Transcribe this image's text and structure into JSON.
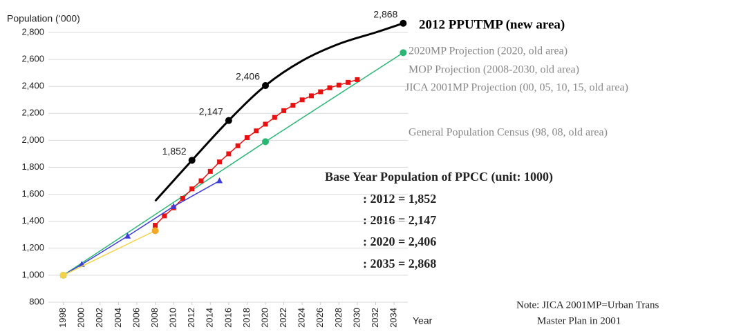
{
  "chart_data": {
    "type": "line",
    "y_label": "Population (‘000)",
    "x_label": "Year",
    "xlim": [
      1997.5,
      2035.5
    ],
    "xticks": [
      1998,
      2000,
      2002,
      2004,
      2006,
      2008,
      2010,
      2012,
      2014,
      2016,
      2018,
      2020,
      2022,
      2024,
      2026,
      2028,
      2030,
      2032,
      2034
    ],
    "ylim": [
      800,
      2800
    ],
    "yticks": [
      800,
      {
        "value": 1000,
        "label": "1,000"
      },
      {
        "value": 1200,
        "label": "1,200"
      },
      {
        "value": 1400,
        "label": "1,400"
      },
      {
        "value": 1600,
        "label": "1,600"
      },
      {
        "value": 1800,
        "label": "1,800"
      },
      {
        "value": 2000,
        "label": "2,000"
      },
      {
        "value": 2200,
        "label": "2,200"
      },
      {
        "value": 2400,
        "label": "2,400"
      },
      {
        "value": 2600,
        "label": "2,600"
      },
      {
        "value": 2800,
        "label": "2,800"
      }
    ],
    "grid": true,
    "series": [
      {
        "name": "2012 PPUTMP (new area)",
        "color": "#000000",
        "marker": "circle",
        "smooth": true,
        "x": [
          2008,
          2012,
          2016,
          2020,
          2024,
          2028,
          2032,
          2035
        ],
        "values": [
          1550,
          1852,
          2147,
          2406,
          2590,
          2715,
          2800,
          2868
        ],
        "value_labels": [
          null,
          "1,852",
          "2,147",
          "2,406",
          null,
          null,
          null,
          "2,868"
        ]
      },
      {
        "name": "2020MP Projection (2020, old area)",
        "color": "#2ab673",
        "marker": "circle",
        "x": [
          1998,
          2020,
          2035
        ],
        "values": [
          1000,
          1990,
          2650
        ]
      },
      {
        "name": "MOP Projection (2008-2030, old area)",
        "color": "#e81010",
        "marker": "square",
        "x": [
          2008,
          2009,
          2010,
          2011,
          2012,
          2013,
          2014,
          2015,
          2016,
          2017,
          2018,
          2019,
          2020,
          2021,
          2022,
          2023,
          2024,
          2025,
          2026,
          2027,
          2028,
          2029,
          2030
        ],
        "values": [
          1370,
          1440,
          1500,
          1570,
          1640,
          1700,
          1770,
          1840,
          1900,
          1960,
          2020,
          2070,
          2120,
          2170,
          2220,
          2260,
          2300,
          2330,
          2360,
          2390,
          2410,
          2430,
          2450
        ]
      },
      {
        "name": "JICA 2001MP Projection (00, 05, 10, 15, old area)",
        "color": "#3c3cdc",
        "marker": "triangle",
        "x": [
          1998,
          2000,
          2005,
          2010,
          2015
        ],
        "values": [
          1000,
          1080,
          1290,
          1510,
          1700
        ]
      },
      {
        "name": "General Population Census (98, 08, old area)",
        "color": "#f2d34a",
        "marker": "circle",
        "x": [
          1998,
          2008
        ],
        "values": [
          1000,
          1330
        ]
      }
    ],
    "annotations": {
      "title": "Base Year Population of PPCC (unit: 1000)",
      "lines": [
        ": 2012 = 1,852",
        ": 2016 = 2,147",
        ": 2020 = 2,406",
        ": 2035 = 2,868"
      ],
      "note": [
        "Note: JICA 2001MP=Urban Trans",
        "Master Plan in 2001"
      ]
    }
  }
}
